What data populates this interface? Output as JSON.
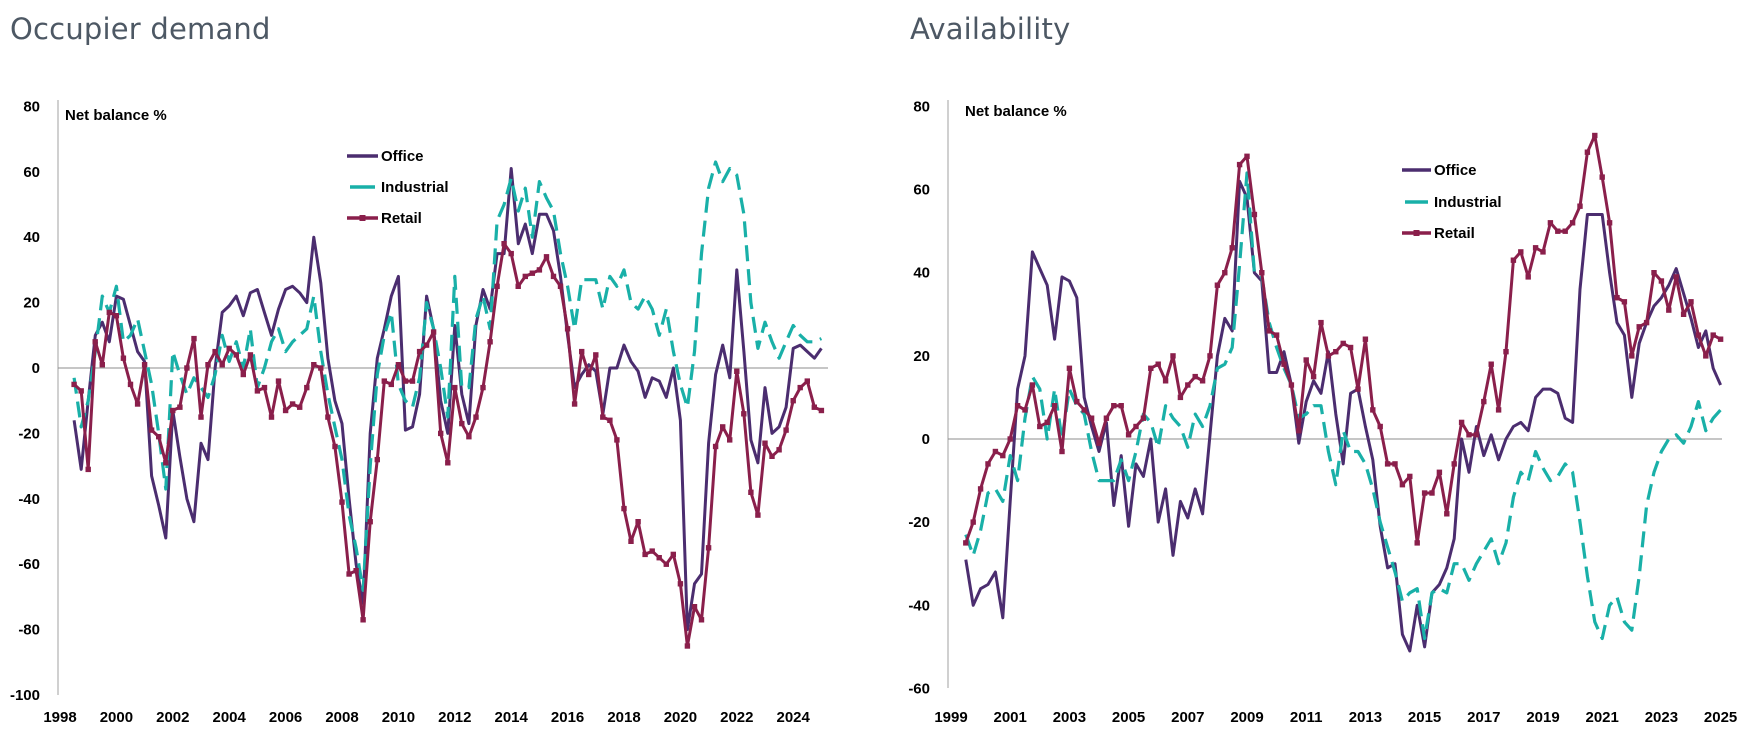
{
  "chart_data": [
    {
      "type": "line",
      "title": "Occupier demand",
      "ylabel": "Net balance %",
      "xlabel": "",
      "ylim": [
        -100,
        80
      ],
      "xlim": [
        1998,
        2025
      ],
      "y_ticks": [
        "80",
        "60",
        "40",
        "20",
        "0",
        "-20",
        "-40",
        "-60",
        "-80",
        "-100"
      ],
      "x_ticks": [
        "1998",
        "2000",
        "2002",
        "2004",
        "2006",
        "2008",
        "2010",
        "2012",
        "2014",
        "2016",
        "2018",
        "2020",
        "2022",
        "2024"
      ],
      "legend_position": "top-center",
      "grid": false,
      "x_start": 1998.5,
      "x_step": 0.25,
      "series": [
        {
          "name": "Office",
          "color": "#4b2d6f",
          "style": "solid",
          "values": [
            -16,
            -31,
            -10,
            10,
            14,
            8,
            22,
            21,
            13,
            5,
            2,
            -33,
            -42,
            -52,
            -13,
            -27,
            -40,
            -47,
            -23,
            -28,
            0,
            17,
            19,
            22,
            16,
            23,
            24,
            17,
            10,
            18,
            24,
            25,
            23,
            20,
            40,
            26,
            3,
            -10,
            -17,
            -40,
            -60,
            -72,
            -20,
            3,
            12,
            22,
            28,
            -19,
            -18,
            -8,
            22,
            12,
            -10,
            -20,
            13,
            -8,
            -17,
            13,
            24,
            18,
            35,
            35,
            61,
            38,
            44,
            35,
            47,
            47,
            42,
            28,
            10,
            -6,
            -2,
            1,
            -1,
            -14,
            0,
            0,
            7,
            2,
            -1,
            -9,
            -3,
            -4,
            -9,
            0,
            -16,
            -80,
            -66,
            -63,
            -23,
            -2,
            7,
            -3,
            30,
            5,
            -22,
            -29,
            -6,
            -20,
            -18,
            -12,
            6,
            7,
            5,
            3,
            6
          ]
        },
        {
          "name": "Industrial",
          "color": "#19b0a8",
          "style": "dashed",
          "values": [
            -3,
            -18,
            -10,
            5,
            22,
            17,
            25,
            8,
            10,
            15,
            5,
            -5,
            -20,
            -37,
            5,
            -2,
            -8,
            -3,
            -6,
            -9,
            -2,
            10,
            2,
            8,
            0,
            12,
            -6,
            0,
            8,
            12,
            5,
            8,
            10,
            12,
            22,
            5,
            -8,
            -18,
            -28,
            -45,
            -55,
            -68,
            -30,
            -2,
            10,
            17,
            -5,
            -10,
            -12,
            -3,
            20,
            12,
            0,
            -15,
            28,
            -6,
            -6,
            15,
            22,
            12,
            45,
            50,
            58,
            48,
            55,
            40,
            57,
            52,
            48,
            35,
            25,
            12,
            27,
            27,
            27,
            18,
            28,
            25,
            30,
            20,
            18,
            22,
            18,
            10,
            18,
            5,
            -5,
            -12,
            5,
            35,
            55,
            63,
            57,
            61,
            59,
            47,
            20,
            6,
            14,
            8,
            3,
            8,
            13,
            10,
            8,
            8,
            9
          ]
        },
        {
          "name": "Retail",
          "color": "#8a1f4b",
          "style": "solid-markers",
          "values": [
            -5,
            -7,
            -31,
            8,
            1,
            17,
            16,
            3,
            -5,
            -11,
            1,
            -19,
            -21,
            -29,
            -13,
            -12,
            0,
            9,
            -15,
            1,
            5,
            1,
            6,
            4,
            -2,
            4,
            -7,
            -6,
            -15,
            -4,
            -13,
            -11,
            -12,
            -6,
            1,
            0,
            -15,
            -24,
            -41,
            -63,
            -62,
            -77,
            -47,
            -28,
            -4,
            -5,
            1,
            -4,
            -4,
            5,
            7,
            11,
            -20,
            -29,
            -6,
            -17,
            -21,
            -15,
            -6,
            8,
            25,
            38,
            35,
            25,
            28,
            29,
            30,
            34,
            28,
            25,
            12,
            -11,
            5,
            -2,
            4,
            -15,
            -16,
            -22,
            -43,
            -53,
            -47,
            -57,
            -56,
            -58,
            -60,
            -57,
            -66,
            -85,
            -73,
            -77,
            -55,
            -24,
            -18,
            -22,
            -1,
            -14,
            -38,
            -45,
            -23,
            -27,
            -25,
            -19,
            -10,
            -6,
            -4,
            -12,
            -13
          ]
        }
      ]
    },
    {
      "type": "line",
      "title": "Availability",
      "ylabel": "Net balance %",
      "xlabel": "",
      "ylim": [
        -60,
        80
      ],
      "xlim": [
        1999,
        2025
      ],
      "y_ticks": [
        "80",
        "60",
        "40",
        "20",
        "0",
        "-20",
        "-40",
        "-60"
      ],
      "x_ticks": [
        "1999",
        "2001",
        "2003",
        "2005",
        "2007",
        "2009",
        "2011",
        "2013",
        "2015",
        "2017",
        "2019",
        "2021",
        "2023",
        "2025"
      ],
      "legend_position": "top-right",
      "grid": false,
      "x_start": 1999.5,
      "x_step": 0.25,
      "series": [
        {
          "name": "Office",
          "color": "#4b2d6f",
          "style": "solid",
          "values": [
            -29,
            -40,
            -36,
            -35,
            -32,
            -43,
            -15,
            12,
            20,
            45,
            41,
            37,
            24,
            39,
            38,
            34,
            10,
            3,
            -3,
            4,
            -16,
            -4,
            -21,
            -6,
            -9,
            0,
            -20,
            -12,
            -28,
            -15,
            -19,
            -12,
            -18,
            1,
            20,
            29,
            26,
            62,
            58,
            40,
            38,
            16,
            16,
            21,
            13,
            -1,
            9,
            14,
            11,
            21,
            6,
            -6,
            11,
            12,
            3,
            -5,
            -21,
            -31,
            -30,
            -47,
            -51,
            -40,
            -50,
            -37,
            -35,
            -31,
            -24,
            0,
            -8,
            3,
            -4,
            1,
            -5,
            0,
            3,
            4,
            2,
            10,
            12,
            12,
            11,
            5,
            4,
            36,
            54,
            54,
            54,
            40,
            28,
            25,
            10,
            23,
            28,
            32,
            34,
            37,
            41,
            35,
            29,
            22,
            26,
            17,
            13
          ]
        },
        {
          "name": "Industrial",
          "color": "#19b0a8",
          "style": "dashed",
          "values": [
            -23,
            -28,
            -22,
            -13,
            -12,
            -15,
            -4,
            -10,
            5,
            15,
            12,
            0,
            12,
            0,
            12,
            8,
            6,
            -3,
            -10,
            -10,
            -10,
            -5,
            -10,
            -3,
            6,
            4,
            -2,
            8,
            5,
            3,
            -2,
            6,
            3,
            8,
            17,
            18,
            22,
            42,
            64,
            40,
            39,
            28,
            22,
            17,
            13,
            5,
            6,
            8,
            8,
            -3,
            -11,
            2,
            -3,
            -3,
            -6,
            -12,
            -20,
            -26,
            -32,
            -39,
            -37,
            -36,
            -48,
            -37,
            -36,
            -37,
            -30,
            -30,
            -34,
            -30,
            -27,
            -24,
            -30,
            -25,
            -14,
            -8,
            -10,
            -3,
            -7,
            -10,
            -9,
            -6,
            -8,
            -20,
            -33,
            -44,
            -48,
            -40,
            -38,
            -44,
            -46,
            -33,
            -16,
            -8,
            -3,
            0,
            1,
            -1,
            3,
            9,
            2,
            5,
            7
          ]
        },
        {
          "name": "Retail",
          "color": "#8a1f4b",
          "style": "solid-markers",
          "values": [
            -25,
            -20,
            -12,
            -6,
            -3,
            -4,
            0,
            8,
            7,
            13,
            3,
            4,
            8,
            -3,
            17,
            9,
            7,
            5,
            -1,
            5,
            8,
            8,
            1,
            3,
            5,
            17,
            18,
            14,
            20,
            10,
            13,
            15,
            14,
            20,
            37,
            40,
            46,
            66,
            68,
            54,
            40,
            26,
            25,
            18,
            13,
            2,
            19,
            15,
            28,
            20,
            21,
            23,
            22,
            12,
            24,
            7,
            3,
            -6,
            -6,
            -11,
            -9,
            -25,
            -13,
            -13,
            -8,
            -18,
            -6,
            4,
            1,
            1,
            9,
            18,
            7,
            21,
            43,
            45,
            39,
            46,
            45,
            52,
            50,
            50,
            52,
            56,
            69,
            73,
            63,
            52,
            34,
            33,
            20,
            27,
            28,
            40,
            38,
            31,
            39,
            30,
            33,
            25,
            20,
            25,
            24
          ]
        }
      ]
    }
  ]
}
